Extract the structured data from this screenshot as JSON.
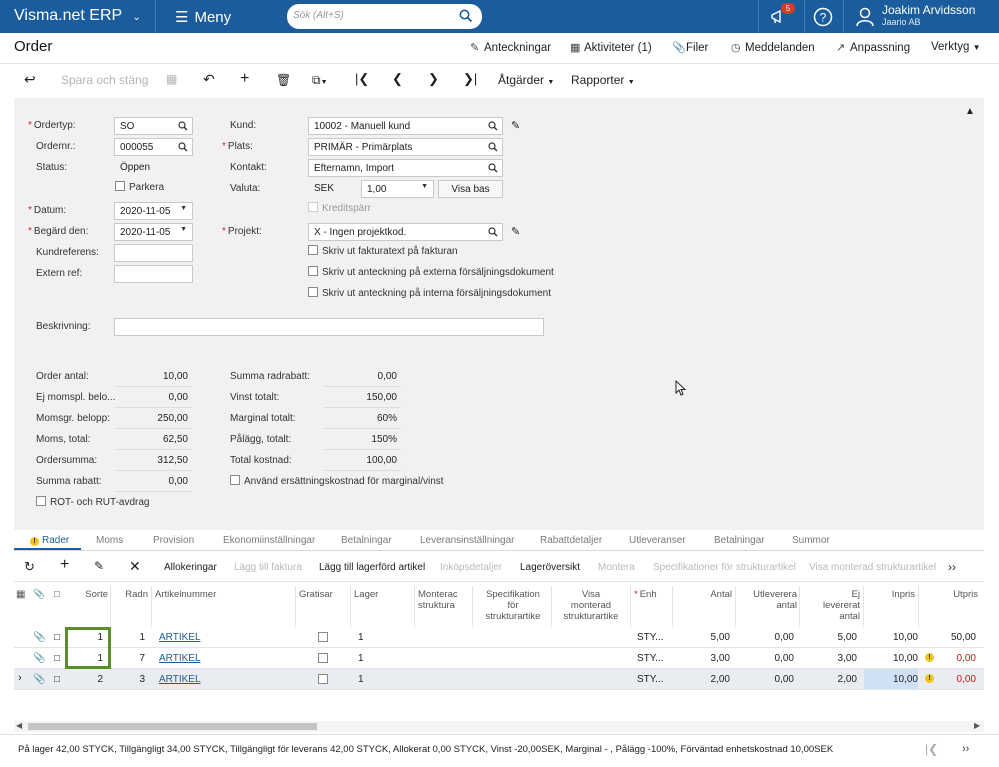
{
  "app": {
    "brand": "Visma.net ERP",
    "menu_label": "Meny",
    "search_placeholder": "Sök (Alt+S)",
    "notifications_count": "5",
    "user_name": "Joakim Arvidsson",
    "user_company": "Jaario AB"
  },
  "page": {
    "title": "Order"
  },
  "top_links": {
    "notes": "Anteckningar",
    "activities": "Aktiviteter (1)",
    "files": "Filer",
    "messages": "Meddelanden",
    "customize": "Anpassning",
    "tools": "Verktyg"
  },
  "toolbar": {
    "save_close": "Spara och stäng",
    "actions": "Åtgärder",
    "reports": "Rapporter"
  },
  "form": {
    "ordertype_label": "Ordertyp:",
    "ordertype_value": "SO",
    "ordernr_label": "Ordernr.:",
    "ordernr_value": "000055",
    "status_label": "Status:",
    "status_value": "Öppen",
    "park_label": "Parkera",
    "date_label": "Datum:",
    "date_value": "2020-11-05",
    "requested_label": "Begärd den:",
    "requested_value": "2020-11-05",
    "custref_label": "Kundreferens:",
    "extref_label": "Extern ref:",
    "customer_label": "Kund:",
    "customer_value": "10002 - Manuell kund",
    "location_label": "Plats:",
    "location_value": "PRIMÄR - Primärplats",
    "contact_label": "Kontakt:",
    "contact_value": "Efternamn, Import",
    "currency_label": "Valuta:",
    "currency_value": "SEK",
    "rate_value": "1,00",
    "view_base": "Visa bas",
    "credit_label": "Kreditspärr",
    "project_label": "Projekt:",
    "project_value": "X - Ingen projektkod.",
    "cb1": "Skriv ut fakturatext på fakturan",
    "cb2": "Skriv ut anteckning på externa försäljningsdokument",
    "cb3": "Skriv ut anteckning på interna försäljningsdokument",
    "description_label": "Beskrivning:"
  },
  "totals_left": [
    {
      "label": "Order antal:",
      "value": "10,00"
    },
    {
      "label": "Ej momspl. belo...",
      "value": "0,00"
    },
    {
      "label": "Momsgr. belopp:",
      "value": "250,00"
    },
    {
      "label": "Moms, total:",
      "value": "62,50"
    },
    {
      "label": "Ordersumma:",
      "value": "312,50"
    },
    {
      "label": "Summa rabatt:",
      "value": "0,00"
    }
  ],
  "totals_right": [
    {
      "label": "Summa radrabatt:",
      "value": "0,00"
    },
    {
      "label": "Vinst totalt:",
      "value": "150,00"
    },
    {
      "label": "Marginal totalt:",
      "value": "60%"
    },
    {
      "label": "Pålägg, totalt:",
      "value": "150%"
    },
    {
      "label": "Total kostnad:",
      "value": "100,00"
    }
  ],
  "rot_label": "ROT- och RUT-avdrag",
  "replacement_label": "Använd ersättningskostnad för marginal/vinst",
  "tabs": [
    "Rader",
    "Moms",
    "Provision",
    "Ekonomiinställningar",
    "Betalningar",
    "Leveransinställningar",
    "Rabattdetaljer",
    "Utleveranser",
    "Betalningar",
    "Summor"
  ],
  "grid_toolbar": {
    "allocations": "Allokeringar",
    "add_invoice": "Lägg till faktura",
    "add_stock": "Lägg till lagerförd artikel",
    "purchase_details": "Inköpsdetaljer",
    "stock_overview": "Lageröversikt",
    "assemble": "Montera",
    "spec": "Specifikationer för strukturartikel",
    "show_assembled": "Visa monterad strukturartikel"
  },
  "columns": {
    "sort": "Sorte",
    "line": "Radn",
    "item": "Artikelnummer",
    "free": "Gratisar",
    "warehouse": "Lager",
    "assembled": "Monterac\nstruktura",
    "spec": "Specifikation\nför\nstrukturartike",
    "show": "Visa\nmonterad\nstrukturartike",
    "unit": "Enh",
    "qty": "Antal",
    "shipped": "Utleverera\nantal",
    "notshipped": "Ej\nlevererat\nantal",
    "cost": "Inpris",
    "price": "Utpris"
  },
  "rows": [
    {
      "sort": "1",
      "line": "1",
      "item": "ARTIKEL",
      "warehouse": "1",
      "unit": "STY...",
      "qty": "5,00",
      "shipped": "0,00",
      "notshipped": "5,00",
      "cost": "10,00",
      "price": "50,00"
    },
    {
      "sort": "1",
      "line": "7",
      "item": "ARTIKEL",
      "warehouse": "1",
      "unit": "STY...",
      "qty": "3,00",
      "shipped": "0,00",
      "notshipped": "3,00",
      "cost": "10,00",
      "price": "0,00"
    },
    {
      "sort": "2",
      "line": "3",
      "item": "ARTIKEL",
      "warehouse": "1",
      "unit": "STY...",
      "qty": "2,00",
      "shipped": "0,00",
      "notshipped": "2,00",
      "cost": "10,00",
      "price": "0,00"
    }
  ],
  "status_bar": "På lager 42,00 STYCK, Tillgängligt 34,00 STYCK, Tillgängligt för leverans 42,00 STYCK, Allokerat 0,00 STYCK, Vinst -20,00SEK, Marginal - , Pålägg -100%, Förväntad enhetskostnad 10,00SEK"
}
